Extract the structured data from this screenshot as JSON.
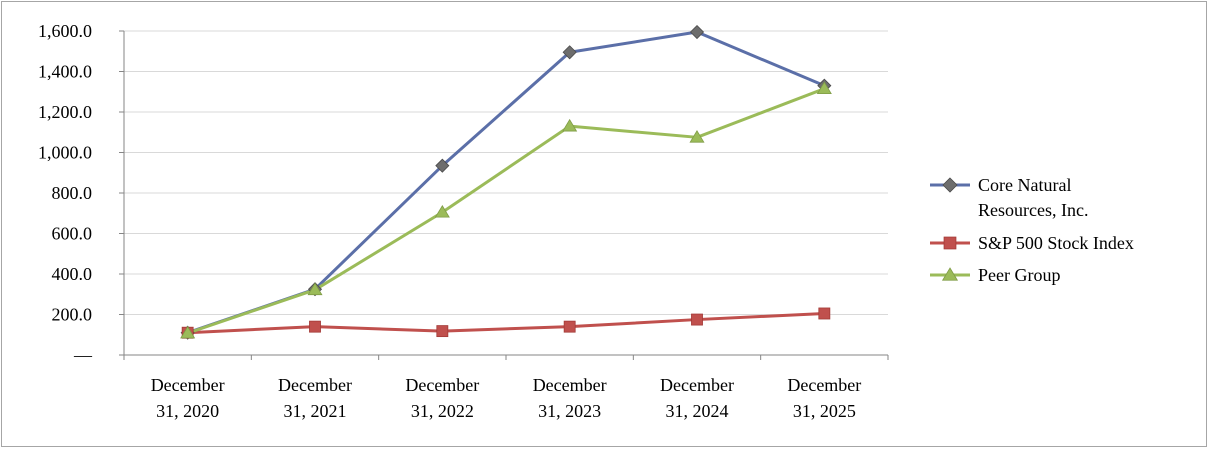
{
  "chart_data": {
    "type": "line",
    "title": "",
    "xlabel": "",
    "ylabel": "",
    "categories": [
      [
        "December",
        "31, 2020"
      ],
      [
        "December",
        "31, 2021"
      ],
      [
        "December",
        "31, 2022"
      ],
      [
        "December",
        "31, 2023"
      ],
      [
        "December",
        "31, 2024"
      ],
      [
        "December",
        "31, 2025"
      ]
    ],
    "y_ticks": [
      {
        "value": 0,
        "label": "—"
      },
      {
        "value": 200,
        "label": "200.0"
      },
      {
        "value": 400,
        "label": "400.0"
      },
      {
        "value": 600,
        "label": "600.0"
      },
      {
        "value": 800,
        "label": "800.0"
      },
      {
        "value": 1000,
        "label": "1,000.0"
      },
      {
        "value": 1200,
        "label": "1,200.0"
      },
      {
        "value": 1400,
        "label": "1,400.0"
      },
      {
        "value": 1600,
        "label": "1,600.0"
      }
    ],
    "ylim": [
      0,
      1600
    ],
    "grid": true,
    "legend_position": "right",
    "series": [
      {
        "name_lines": [
          "Core Natural",
          "Resources, Inc."
        ],
        "color": "#5b6fa8",
        "marker": "diamond",
        "values": [
          110,
          325,
          935,
          1495,
          1595,
          1330
        ]
      },
      {
        "name_lines": [
          "S&P 500 Stock Index"
        ],
        "color": "#c0504d",
        "marker": "square",
        "values": [
          110,
          140,
          118,
          140,
          175,
          205
        ]
      },
      {
        "name_lines": [
          "Peer Group"
        ],
        "color": "#9bbb59",
        "marker": "triangle",
        "values": [
          108,
          322,
          705,
          1130,
          1075,
          1315
        ]
      }
    ]
  }
}
